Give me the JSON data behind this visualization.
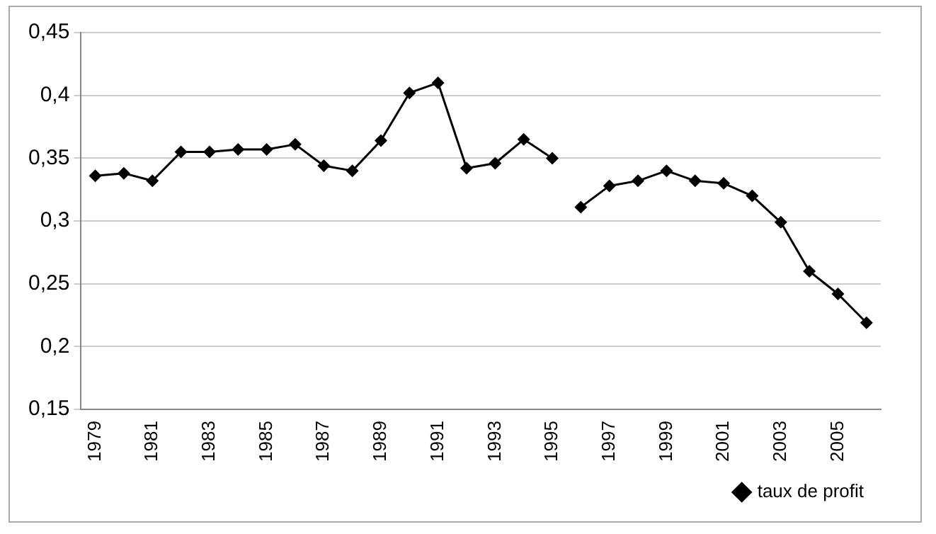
{
  "chart_data": {
    "type": "line",
    "categories": [
      "1979",
      null,
      "1981",
      null,
      "1983",
      null,
      "1985",
      null,
      "1987",
      null,
      "1989",
      null,
      "1991",
      null,
      "1993",
      null,
      "1995",
      null,
      "1997",
      null,
      "1999",
      null,
      "2001",
      null,
      "2003",
      null,
      "2005",
      null
    ],
    "series": [
      {
        "name": "taux de profit",
        "color": "#000000",
        "values": [
          0.336,
          0.338,
          0.332,
          0.355,
          0.355,
          0.357,
          0.357,
          0.361,
          0.344,
          0.34,
          0.364,
          0.402,
          0.41,
          0.342,
          0.346,
          0.365,
          0.35,
          null,
          null,
          null,
          null,
          null,
          null,
          null,
          null,
          null,
          null,
          null
        ]
      },
      {
        "color": "#000000",
        "values": [
          null,
          null,
          null,
          null,
          null,
          null,
          null,
          null,
          null,
          null,
          null,
          null,
          null,
          null,
          null,
          null,
          null,
          0.311,
          0.328,
          0.332,
          0.34,
          0.332,
          0.33,
          0.32,
          0.299,
          0.26,
          0.242,
          0.219
        ]
      }
    ],
    "ylim": [
      0.15,
      0.45
    ],
    "yticks": [
      {
        "value": 0.15,
        "label": "0,15"
      },
      {
        "value": 0.2,
        "label": "0,2"
      },
      {
        "value": 0.25,
        "label": "0,25"
      },
      {
        "value": 0.3,
        "label": "0,3"
      },
      {
        "value": 0.35,
        "label": "0,35"
      },
      {
        "value": 0.4,
        "label": "0,4"
      },
      {
        "value": 0.45,
        "label": "0,45"
      }
    ],
    "grid": "y",
    "legend": "bottom right",
    "marker": "diamond",
    "line_style": "solid"
  }
}
